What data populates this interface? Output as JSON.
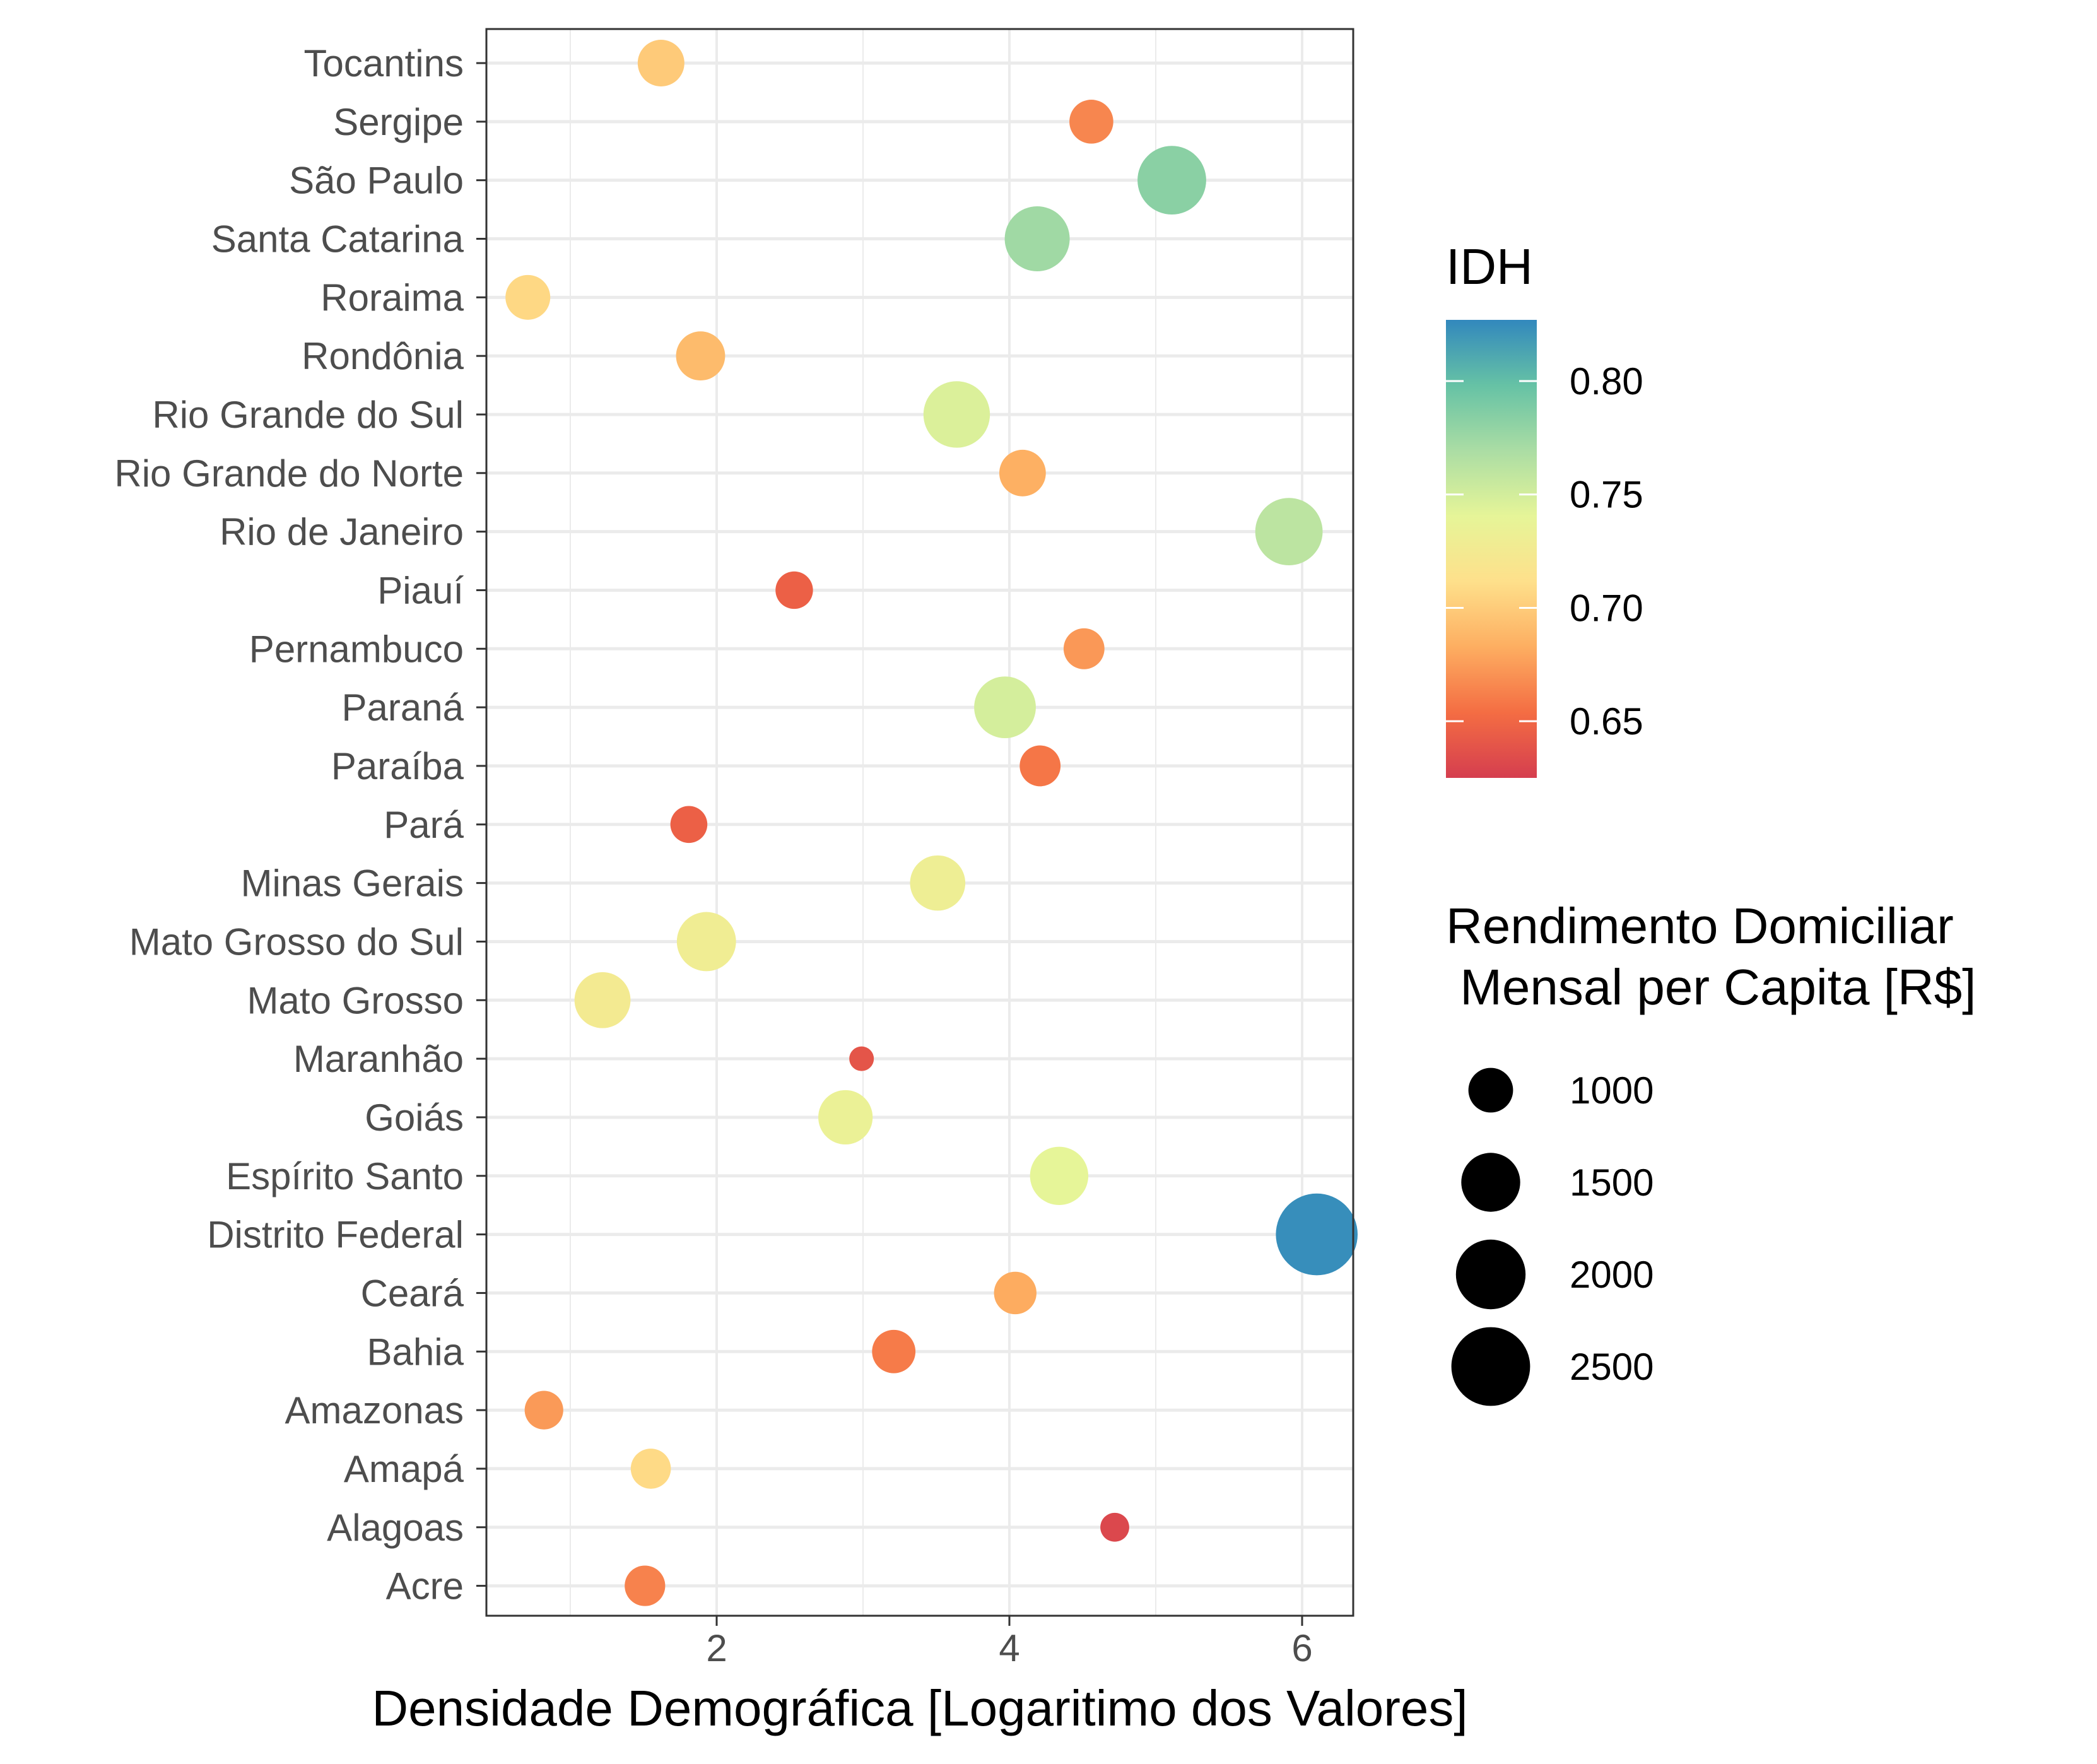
{
  "chart_data": {
    "type": "scatter",
    "title": "",
    "xlabel": "Densidade Demográfica [Logaritimo dos Valores]",
    "ylabel": "",
    "xlim": [
      0.45,
      6.38
    ],
    "xticks": [
      2,
      4,
      6
    ],
    "grid": true,
    "categories": [
      "Acre",
      "Alagoas",
      "Amapá",
      "Amazonas",
      "Bahia",
      "Ceará",
      "Distrito Federal",
      "Espírito Santo",
      "Goiás",
      "Maranhão",
      "Mato Grosso",
      "Mato Grosso do Sul",
      "Minas Gerais",
      "Pará",
      "Paraíba",
      "Paraná",
      "Pernambuco",
      "Piauí",
      "Rio de Janeiro",
      "Rio Grande do Norte",
      "Rio Grande do Sul",
      "Rondônia",
      "Roraima",
      "Santa Catarina",
      "São Paulo",
      "Sergipe",
      "Tocantins"
    ],
    "points": [
      {
        "state": "Acre",
        "x": 1.51,
        "idh": 0.663,
        "renda": 890
      },
      {
        "state": "Alagoas",
        "x": 4.72,
        "idh": 0.631,
        "renda": 658
      },
      {
        "state": "Amapá",
        "x": 1.55,
        "idh": 0.708,
        "renda": 880
      },
      {
        "state": "Amazonas",
        "x": 0.82,
        "idh": 0.674,
        "renda": 842
      },
      {
        "state": "Bahia",
        "x": 3.21,
        "idh": 0.66,
        "renda": 965
      },
      {
        "state": "Ceará",
        "x": 4.04,
        "idh": 0.682,
        "renda": 942
      },
      {
        "state": "Distrito Federal",
        "x": 6.1,
        "idh": 0.824,
        "renda": 2686
      },
      {
        "state": "Espírito Santo",
        "x": 4.34,
        "idh": 0.74,
        "renda": 1477
      },
      {
        "state": "Goiás",
        "x": 2.88,
        "idh": 0.735,
        "renda": 1323
      },
      {
        "state": "Maranhão",
        "x": 2.99,
        "idh": 0.639,
        "renda": 605
      },
      {
        "state": "Mato Grosso",
        "x": 1.22,
        "idh": 0.725,
        "renda": 1386
      },
      {
        "state": "Mato Grosso do Sul",
        "x": 1.93,
        "idh": 0.729,
        "renda": 1514
      },
      {
        "state": "Minas Gerais",
        "x": 3.51,
        "idh": 0.731,
        "renda": 1358
      },
      {
        "state": "Pará",
        "x": 1.81,
        "idh": 0.646,
        "renda": 807
      },
      {
        "state": "Paraíba",
        "x": 4.21,
        "idh": 0.658,
        "renda": 898
      },
      {
        "state": "Paraná",
        "x": 3.97,
        "idh": 0.749,
        "renda": 1621
      },
      {
        "state": "Pernambuco",
        "x": 4.51,
        "idh": 0.673,
        "renda": 897
      },
      {
        "state": "Piauí",
        "x": 2.53,
        "idh": 0.646,
        "renda": 817
      },
      {
        "state": "Rio de Janeiro",
        "x": 5.91,
        "idh": 0.761,
        "renda": 1882
      },
      {
        "state": "Rio Grande do Norte",
        "x": 4.09,
        "idh": 0.684,
        "renda": 1056
      },
      {
        "state": "Rio Grande do Sul",
        "x": 3.64,
        "idh": 0.746,
        "renda": 1843
      },
      {
        "state": "Rondônia",
        "x": 1.89,
        "idh": 0.69,
        "renda": 1136
      },
      {
        "state": "Roraima",
        "x": 0.71,
        "idh": 0.707,
        "renda": 1006
      },
      {
        "state": "Santa Catarina",
        "x": 4.19,
        "idh": 0.774,
        "renda": 1769
      },
      {
        "state": "São Paulo",
        "x": 5.11,
        "idh": 0.783,
        "renda": 1946
      },
      {
        "state": "Sergipe",
        "x": 4.56,
        "idh": 0.665,
        "renda": 980
      },
      {
        "state": "Tocantins",
        "x": 1.62,
        "idh": 0.699,
        "renda": 1060
      }
    ],
    "color_legend": {
      "title": "IDH",
      "ticks": [
        {
          "value": 0.8,
          "label": "0.80"
        },
        {
          "value": 0.75,
          "label": "0.75"
        },
        {
          "value": 0.7,
          "label": "0.70"
        },
        {
          "value": 0.65,
          "label": "0.65"
        }
      ],
      "range": [
        0.625,
        0.827
      ],
      "palette": [
        "#d53e4f",
        "#f46d43",
        "#fdae61",
        "#fee08b",
        "#e6f598",
        "#abdda4",
        "#66c2a5",
        "#3288bd"
      ]
    },
    "size_legend": {
      "title_lines": [
        "Rendimento Domiciliar",
        " Mensal per Capita [R$]"
      ],
      "items": [
        {
          "value": 1000,
          "label": "1000"
        },
        {
          "value": 1500,
          "label": "1500"
        },
        {
          "value": 2000,
          "label": "2000"
        },
        {
          "value": 2500,
          "label": "2500"
        }
      ]
    }
  }
}
